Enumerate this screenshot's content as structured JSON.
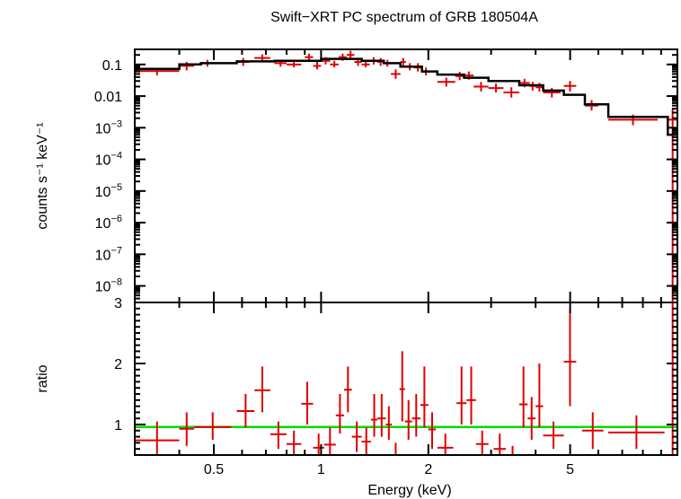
{
  "chart_data": [
    {
      "type": "scatter",
      "panel": "spectrum",
      "title": "Swift−XRT PC spectrum of GRB 180504A",
      "ylabel": "counts s⁻¹ keV⁻¹",
      "xscale": "log",
      "yscale": "log",
      "xlim": [
        0.3,
        10
      ],
      "ylim": [
        3e-09,
        0.3
      ],
      "y_tick_labels": [
        {
          "v": 0.1,
          "label": "0.1"
        },
        {
          "v": 0.01,
          "label": "0.01"
        },
        {
          "v": 0.001,
          "base": "10",
          "exp": "−3"
        },
        {
          "v": 0.0001,
          "base": "10",
          "exp": "−4"
        },
        {
          "v": 1e-05,
          "base": "10",
          "exp": "−5"
        },
        {
          "v": 1e-06,
          "base": "10",
          "exp": "−6"
        },
        {
          "v": 1e-07,
          "base": "10",
          "exp": "−7"
        },
        {
          "v": 1e-08,
          "base": "10",
          "exp": "−8"
        }
      ],
      "data_color": "#e00000",
      "model_color": "#000000",
      "data": [
        {
          "x0": 0.3,
          "x1": 0.4,
          "y": 0.062,
          "ylo": 0.045,
          "yhi": 0.078
        },
        {
          "x0": 0.4,
          "x1": 0.44,
          "y": 0.09,
          "ylo": 0.065,
          "yhi": 0.12
        },
        {
          "x0": 0.46,
          "x1": 0.5,
          "y": 0.11,
          "ylo": 0.085,
          "yhi": 0.14
        },
        {
          "x0": 0.58,
          "x1": 0.63,
          "y": 0.12,
          "ylo": 0.09,
          "yhi": 0.16
        },
        {
          "x0": 0.65,
          "x1": 0.72,
          "y": 0.16,
          "ylo": 0.12,
          "yhi": 0.21
        },
        {
          "x0": 0.74,
          "x1": 0.8,
          "y": 0.11,
          "ylo": 0.085,
          "yhi": 0.14
        },
        {
          "x0": 0.8,
          "x1": 0.88,
          "y": 0.1,
          "ylo": 0.08,
          "yhi": 0.13
        },
        {
          "x0": 0.9,
          "x1": 0.95,
          "y": 0.17,
          "ylo": 0.13,
          "yhi": 0.22
        },
        {
          "x0": 0.95,
          "x1": 1.0,
          "y": 0.09,
          "ylo": 0.07,
          "yhi": 0.12
        },
        {
          "x0": 1.0,
          "x1": 1.06,
          "y": 0.13,
          "ylo": 0.1,
          "yhi": 0.17
        },
        {
          "x0": 1.06,
          "x1": 1.12,
          "y": 0.1,
          "ylo": 0.08,
          "yhi": 0.13
        },
        {
          "x0": 1.12,
          "x1": 1.18,
          "y": 0.17,
          "ylo": 0.13,
          "yhi": 0.22
        },
        {
          "x0": 1.18,
          "x1": 1.24,
          "y": 0.2,
          "ylo": 0.15,
          "yhi": 0.27
        },
        {
          "x0": 1.24,
          "x1": 1.3,
          "y": 0.12,
          "ylo": 0.09,
          "yhi": 0.16
        },
        {
          "x0": 1.3,
          "x1": 1.37,
          "y": 0.1,
          "ylo": 0.08,
          "yhi": 0.13
        },
        {
          "x0": 1.37,
          "x1": 1.44,
          "y": 0.13,
          "ylo": 0.1,
          "yhi": 0.17
        },
        {
          "x0": 1.44,
          "x1": 1.5,
          "y": 0.12,
          "ylo": 0.09,
          "yhi": 0.16
        },
        {
          "x0": 1.5,
          "x1": 1.57,
          "y": 0.11,
          "ylo": 0.085,
          "yhi": 0.14
        },
        {
          "x0": 1.57,
          "x1": 1.67,
          "y": 0.05,
          "ylo": 0.035,
          "yhi": 0.07
        },
        {
          "x0": 1.67,
          "x1": 1.73,
          "y": 0.12,
          "ylo": 0.09,
          "yhi": 0.16
        },
        {
          "x0": 1.73,
          "x1": 1.82,
          "y": 0.085,
          "ylo": 0.065,
          "yhi": 0.11
        },
        {
          "x0": 1.82,
          "x1": 1.92,
          "y": 0.08,
          "ylo": 0.06,
          "yhi": 0.11
        },
        {
          "x0": 1.92,
          "x1": 2.02,
          "y": 0.06,
          "ylo": 0.045,
          "yhi": 0.08
        },
        {
          "x0": 2.12,
          "x1": 2.38,
          "y": 0.028,
          "ylo": 0.02,
          "yhi": 0.038
        },
        {
          "x0": 2.38,
          "x1": 2.52,
          "y": 0.043,
          "ylo": 0.032,
          "yhi": 0.058
        },
        {
          "x0": 2.52,
          "x1": 2.68,
          "y": 0.045,
          "ylo": 0.033,
          "yhi": 0.06
        },
        {
          "x0": 2.68,
          "x1": 2.95,
          "y": 0.02,
          "ylo": 0.014,
          "yhi": 0.028
        },
        {
          "x0": 2.95,
          "x1": 3.25,
          "y": 0.018,
          "ylo": 0.013,
          "yhi": 0.025
        },
        {
          "x0": 3.25,
          "x1": 3.6,
          "y": 0.013,
          "ylo": 0.009,
          "yhi": 0.019
        },
        {
          "x0": 3.6,
          "x1": 3.85,
          "y": 0.026,
          "ylo": 0.019,
          "yhi": 0.035
        },
        {
          "x0": 3.85,
          "x1": 4.0,
          "y": 0.021,
          "ylo": 0.015,
          "yhi": 0.028
        },
        {
          "x0": 4.0,
          "x1": 4.2,
          "y": 0.019,
          "ylo": 0.014,
          "yhi": 0.026
        },
        {
          "x0": 4.2,
          "x1": 4.7,
          "y": 0.013,
          "ylo": 0.009,
          "yhi": 0.018
        },
        {
          "x0": 4.8,
          "x1": 5.2,
          "y": 0.021,
          "ylo": 0.014,
          "yhi": 0.03
        },
        {
          "x0": 5.5,
          "x1": 6.0,
          "y": 0.005,
          "ylo": 0.0035,
          "yhi": 0.0075
        },
        {
          "x0": 6.4,
          "x1": 8.8,
          "y": 0.0018,
          "ylo": 0.0012,
          "yhi": 0.0026
        },
        {
          "x0": 9.4,
          "x1": 10.0,
          "y": 0.0018,
          "ylo": 3e-09,
          "yhi": 0.004
        }
      ],
      "model": [
        {
          "x": 0.3,
          "y": 0.072
        },
        {
          "x": 0.4,
          "y": 0.072
        },
        {
          "x": 0.4,
          "y": 0.1
        },
        {
          "x": 0.46,
          "y": 0.1
        },
        {
          "x": 0.46,
          "y": 0.11
        },
        {
          "x": 0.58,
          "y": 0.11
        },
        {
          "x": 0.58,
          "y": 0.125
        },
        {
          "x": 0.74,
          "y": 0.125
        },
        {
          "x": 0.74,
          "y": 0.13
        },
        {
          "x": 1.0,
          "y": 0.13
        },
        {
          "x": 1.0,
          "y": 0.15
        },
        {
          "x": 1.3,
          "y": 0.15
        },
        {
          "x": 1.3,
          "y": 0.13
        },
        {
          "x": 1.5,
          "y": 0.13
        },
        {
          "x": 1.5,
          "y": 0.11
        },
        {
          "x": 1.67,
          "y": 0.11
        },
        {
          "x": 1.67,
          "y": 0.085
        },
        {
          "x": 1.92,
          "y": 0.085
        },
        {
          "x": 1.92,
          "y": 0.06
        },
        {
          "x": 2.12,
          "y": 0.06
        },
        {
          "x": 2.12,
          "y": 0.048
        },
        {
          "x": 2.52,
          "y": 0.048
        },
        {
          "x": 2.52,
          "y": 0.038
        },
        {
          "x": 2.95,
          "y": 0.038
        },
        {
          "x": 2.95,
          "y": 0.03
        },
        {
          "x": 3.6,
          "y": 0.03
        },
        {
          "x": 3.6,
          "y": 0.022
        },
        {
          "x": 4.2,
          "y": 0.022
        },
        {
          "x": 4.2,
          "y": 0.015
        },
        {
          "x": 4.8,
          "y": 0.015
        },
        {
          "x": 4.8,
          "y": 0.011
        },
        {
          "x": 5.5,
          "y": 0.011
        },
        {
          "x": 5.5,
          "y": 0.0055
        },
        {
          "x": 6.4,
          "y": 0.0055
        },
        {
          "x": 6.4,
          "y": 0.0022
        },
        {
          "x": 9.4,
          "y": 0.0022
        },
        {
          "x": 9.4,
          "y": 0.0006
        },
        {
          "x": 10.0,
          "y": 0.0006
        }
      ]
    },
    {
      "type": "scatter",
      "panel": "ratio",
      "xlabel": "Energy (keV)",
      "ylabel": "ratio",
      "xscale": "log",
      "xlim": [
        0.3,
        10
      ],
      "ylim": [
        0.5,
        3.0
      ],
      "x_tick_labels": [
        {
          "v": 0.5,
          "label": "0.5"
        },
        {
          "v": 1,
          "label": "1"
        },
        {
          "v": 2,
          "label": "2"
        },
        {
          "v": 5,
          "label": "5"
        }
      ],
      "y_tick_labels": [
        {
          "v": 1,
          "label": "1"
        },
        {
          "v": 2,
          "label": "2"
        },
        {
          "v": 3,
          "label": "3"
        }
      ],
      "reference_line": {
        "y": 0.96,
        "color": "#00dd00"
      },
      "data_color": "#e00000",
      "data": [
        {
          "x0": 0.3,
          "x1": 0.4,
          "y": 0.74,
          "ylo": 0.5,
          "yhi": 1.05
        },
        {
          "x0": 0.4,
          "x1": 0.44,
          "y": 0.93,
          "ylo": 0.65,
          "yhi": 1.2
        },
        {
          "x0": 0.44,
          "x1": 0.56,
          "y": 0.96,
          "ylo": 0.75,
          "yhi": 1.2
        },
        {
          "x0": 0.58,
          "x1": 0.65,
          "y": 1.22,
          "ylo": 0.95,
          "yhi": 1.5
        },
        {
          "x0": 0.65,
          "x1": 0.72,
          "y": 1.56,
          "ylo": 1.2,
          "yhi": 1.95
        },
        {
          "x0": 0.72,
          "x1": 0.8,
          "y": 0.84,
          "ylo": 0.6,
          "yhi": 1.05
        },
        {
          "x0": 0.8,
          "x1": 0.88,
          "y": 0.68,
          "ylo": 0.5,
          "yhi": 0.9
        },
        {
          "x0": 0.88,
          "x1": 0.95,
          "y": 1.34,
          "ylo": 1.0,
          "yhi": 1.7
        },
        {
          "x0": 0.95,
          "x1": 1.02,
          "y": 0.62,
          "ylo": 0.5,
          "yhi": 0.85
        },
        {
          "x0": 1.02,
          "x1": 1.1,
          "y": 0.67,
          "ylo": 0.5,
          "yhi": 0.95
        },
        {
          "x0": 1.1,
          "x1": 1.16,
          "y": 1.15,
          "ylo": 0.85,
          "yhi": 1.5
        },
        {
          "x0": 1.16,
          "x1": 1.22,
          "y": 1.57,
          "ylo": 1.2,
          "yhi": 1.95
        },
        {
          "x0": 1.22,
          "x1": 1.3,
          "y": 0.8,
          "ylo": 0.55,
          "yhi": 1.05
        },
        {
          "x0": 1.3,
          "x1": 1.38,
          "y": 0.72,
          "ylo": 0.5,
          "yhi": 0.95
        },
        {
          "x0": 1.38,
          "x1": 1.44,
          "y": 1.08,
          "ylo": 0.8,
          "yhi": 1.5
        },
        {
          "x0": 1.44,
          "x1": 1.52,
          "y": 1.1,
          "ylo": 0.8,
          "yhi": 1.5
        },
        {
          "x0": 1.52,
          "x1": 1.58,
          "y": 1.0,
          "ylo": 0.75,
          "yhi": 1.3
        },
        {
          "x0": 1.58,
          "x1": 1.66,
          "y": 0.48,
          "ylo": 0.5,
          "yhi": 0.7
        },
        {
          "x0": 1.66,
          "x1": 1.72,
          "y": 1.58,
          "ylo": 1.05,
          "yhi": 2.2
        },
        {
          "x0": 1.72,
          "x1": 1.8,
          "y": 1.05,
          "ylo": 0.75,
          "yhi": 1.4
        },
        {
          "x0": 1.8,
          "x1": 1.9,
          "y": 1.1,
          "ylo": 0.8,
          "yhi": 1.5
        },
        {
          "x0": 1.9,
          "x1": 2.0,
          "y": 1.32,
          "ylo": 0.95,
          "yhi": 1.95
        },
        {
          "x0": 2.0,
          "x1": 2.1,
          "y": 0.92,
          "ylo": 0.6,
          "yhi": 1.2
        },
        {
          "x0": 2.12,
          "x1": 2.35,
          "y": 0.62,
          "ylo": 0.5,
          "yhi": 0.85
        },
        {
          "x0": 2.4,
          "x1": 2.56,
          "y": 1.35,
          "ylo": 1.0,
          "yhi": 1.95
        },
        {
          "x0": 2.56,
          "x1": 2.72,
          "y": 1.4,
          "ylo": 1.0,
          "yhi": 1.95
        },
        {
          "x0": 2.72,
          "x1": 2.95,
          "y": 0.68,
          "ylo": 0.5,
          "yhi": 0.9
        },
        {
          "x0": 3.05,
          "x1": 3.3,
          "y": 0.6,
          "ylo": 0.5,
          "yhi": 0.85
        },
        {
          "x0": 3.3,
          "x1": 3.6,
          "y": 0.47,
          "ylo": 0.5,
          "yhi": 0.65
        },
        {
          "x0": 3.6,
          "x1": 3.8,
          "y": 1.33,
          "ylo": 0.95,
          "yhi": 1.95
        },
        {
          "x0": 3.8,
          "x1": 4.0,
          "y": 1.1,
          "ylo": 0.75,
          "yhi": 1.45
        },
        {
          "x0": 4.0,
          "x1": 4.2,
          "y": 1.3,
          "ylo": 0.95,
          "yhi": 2.0
        },
        {
          "x0": 4.2,
          "x1": 4.8,
          "y": 0.82,
          "ylo": 0.6,
          "yhi": 1.05
        },
        {
          "x0": 4.8,
          "x1": 5.2,
          "y": 2.03,
          "ylo": 1.3,
          "yhi": 2.9
        },
        {
          "x0": 5.4,
          "x1": 6.2,
          "y": 0.9,
          "ylo": 0.6,
          "yhi": 1.2
        },
        {
          "x0": 6.4,
          "x1": 9.2,
          "y": 0.87,
          "ylo": 0.6,
          "yhi": 1.15
        },
        {
          "x0": 9.4,
          "x1": 10.0,
          "y": 3.0,
          "ylo": 0.5,
          "yhi": 3.1
        }
      ]
    }
  ]
}
